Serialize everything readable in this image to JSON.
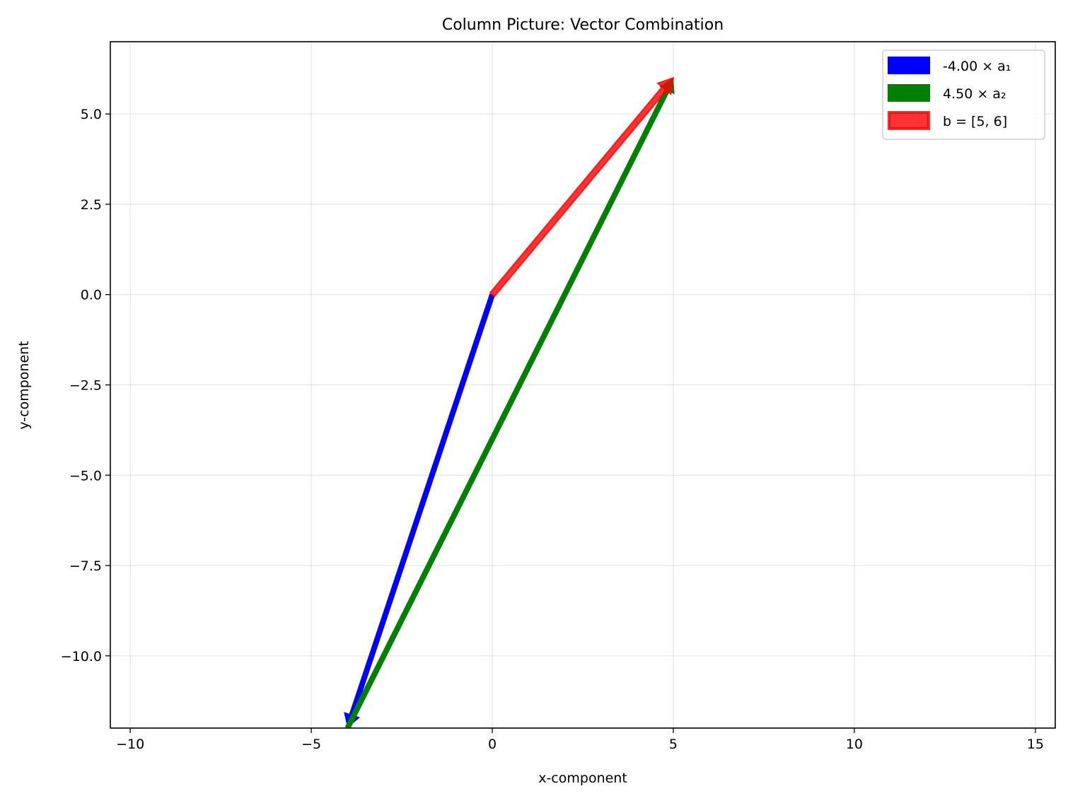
{
  "chart_data": {
    "type": "vector",
    "title": "Column Picture: Vector Combination",
    "xlabel": "x-component",
    "ylabel": "y-component",
    "xlim": [
      -10.55,
      15.55
    ],
    "ylim": [
      -12,
      7
    ],
    "xticks": [
      -10,
      -5,
      0,
      5,
      10,
      15
    ],
    "xtick_labels": [
      "−10",
      "−5",
      "0",
      "5",
      "10",
      "15"
    ],
    "yticks": [
      -10,
      -7.5,
      -5,
      -2.5,
      0,
      2.5,
      5
    ],
    "ytick_labels": [
      "−10.0",
      "−7.5",
      "−5.0",
      "−2.5",
      "0.0",
      "2.5",
      "5.0"
    ],
    "grid": true,
    "legend_placement": "upper right",
    "series": [
      {
        "name": "-4.00 × a₁",
        "start": [
          0,
          0
        ],
        "end": [
          -4,
          -12
        ],
        "color": "#0000ff"
      },
      {
        "name": "4.50 × a₂",
        "start": [
          -4,
          -12
        ],
        "end": [
          5,
          6
        ],
        "color": "#008000"
      },
      {
        "name": "b = [5, 6]",
        "start": [
          0,
          0
        ],
        "end": [
          5,
          6
        ],
        "color": "#ff0000",
        "alpha": 0.8
      }
    ]
  }
}
